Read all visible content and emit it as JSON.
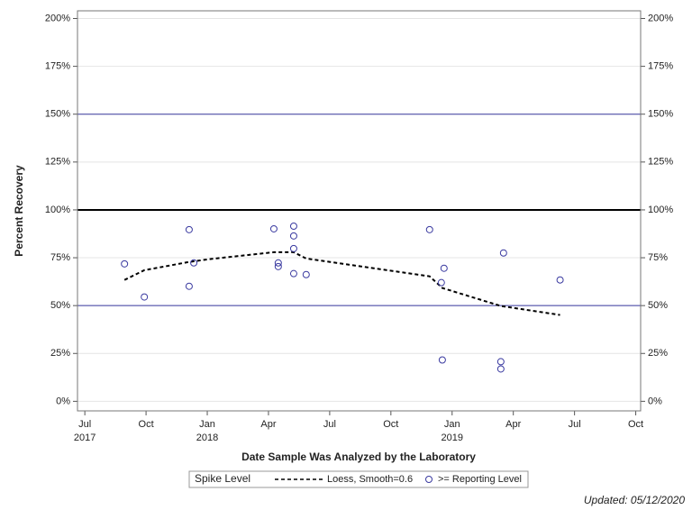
{
  "chart_data": {
    "type": "scatter",
    "xlabel": "Date Sample Was Analyzed by the Laboratory",
    "ylabel": "Percent Recovery",
    "legend_title": "Spike Level",
    "footer": "Updated: 05/12/2020",
    "xlim": [
      2017.47,
      2019.77
    ],
    "xticks": [
      {
        "value": 2017.5,
        "label": "Jul"
      },
      {
        "value": 2017.75,
        "label": "Oct"
      },
      {
        "value": 2018.0,
        "label": "Jan"
      },
      {
        "value": 2018.25,
        "label": "Apr"
      },
      {
        "value": 2018.5,
        "label": "Jul"
      },
      {
        "value": 2018.75,
        "label": "Oct"
      },
      {
        "value": 2019.0,
        "label": "Jan"
      },
      {
        "value": 2019.25,
        "label": "Apr"
      },
      {
        "value": 2019.5,
        "label": "Jul"
      },
      {
        "value": 2019.75,
        "label": "Oct"
      }
    ],
    "xtick_years": [
      {
        "value": 2017.5,
        "label": "2017"
      },
      {
        "value": 2018.0,
        "label": "2018"
      },
      {
        "value": 2019.0,
        "label": "2019"
      }
    ],
    "ylim": [
      -5,
      204
    ],
    "yticks": [
      {
        "value": 0,
        "label": "0%"
      },
      {
        "value": 25,
        "label": "25%"
      },
      {
        "value": 50,
        "label": "50%"
      },
      {
        "value": 75,
        "label": "75%"
      },
      {
        "value": 100,
        "label": "100%"
      },
      {
        "value": 125,
        "label": "125%"
      },
      {
        "value": 150,
        "label": "150%"
      },
      {
        "value": 175,
        "label": "175%"
      },
      {
        "value": 200,
        "label": "200%"
      }
    ],
    "y2lim": [
      -5,
      204
    ],
    "y2ticks": [
      {
        "value": 0,
        "label": "0%"
      },
      {
        "value": 25,
        "label": "25%"
      },
      {
        "value": 50,
        "label": "50%"
      },
      {
        "value": 75,
        "label": "75%"
      },
      {
        "value": 100,
        "label": "100%"
      },
      {
        "value": 125,
        "label": "125%"
      },
      {
        "value": 150,
        "label": "150%"
      },
      {
        "value": 175,
        "label": "175%"
      },
      {
        "value": 200,
        "label": "200%"
      }
    ],
    "grid": true,
    "reference_lines": [
      {
        "value": 150,
        "color": "#3a3aa0",
        "width": 1
      },
      {
        "value": 100,
        "color": "#000000",
        "width": 2
      },
      {
        "value": 50,
        "color": "#3a3aa0",
        "width": 1
      }
    ],
    "series": [
      {
        "name": "Loess, Smooth=0.6",
        "type": "line",
        "color": "#000000",
        "x": [
          2017.662,
          2017.743,
          2017.926,
          2018.004,
          2018.272,
          2018.353,
          2018.404,
          2018.908,
          2018.96,
          2019.199,
          2019.441
        ],
        "values": [
          63.4,
          68.5,
          72.8,
          74.2,
          77.9,
          77.9,
          74.6,
          65.3,
          59.2,
          49.8,
          45.1
        ]
      },
      {
        "name": ">= Reporting Level",
        "type": "scatter",
        "color": "#3a3aa0",
        "x": [
          2017.662,
          2017.743,
          2017.926,
          2017.926,
          2017.945,
          2018.272,
          2018.29,
          2018.29,
          2018.353,
          2018.353,
          2018.353,
          2018.353,
          2018.404,
          2018.908,
          2018.967,
          2018.956,
          2018.96,
          2019.21,
          2019.199,
          2019.199,
          2019.441
        ],
        "values": [
          71.8,
          54.5,
          89.7,
          60.1,
          72.3,
          90.1,
          72.3,
          70.4,
          91.5,
          86.4,
          79.8,
          66.7,
          66.2,
          89.7,
          69.5,
          62.0,
          21.6,
          77.5,
          20.7,
          16.9,
          63.4
        ]
      }
    ]
  }
}
